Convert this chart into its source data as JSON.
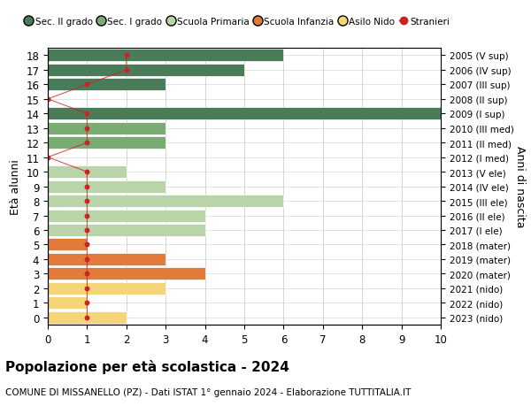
{
  "ages": [
    18,
    17,
    16,
    15,
    14,
    13,
    12,
    11,
    10,
    9,
    8,
    7,
    6,
    5,
    4,
    3,
    2,
    1,
    0
  ],
  "years": [
    "2005 (V sup)",
    "2006 (IV sup)",
    "2007 (III sup)",
    "2008 (II sup)",
    "2009 (I sup)",
    "2010 (III med)",
    "2011 (II med)",
    "2012 (I med)",
    "2013 (V ele)",
    "2014 (IV ele)",
    "2015 (III ele)",
    "2016 (II ele)",
    "2017 (I ele)",
    "2018 (mater)",
    "2019 (mater)",
    "2020 (mater)",
    "2021 (nido)",
    "2022 (nido)",
    "2023 (nido)"
  ],
  "bar_values": [
    6,
    5,
    3,
    0,
    10,
    3,
    3,
    0,
    2,
    3,
    6,
    4,
    4,
    1,
    3,
    4,
    3,
    1,
    2
  ],
  "bar_colors": [
    "#4a7c59",
    "#4a7c59",
    "#4a7c59",
    "#4a7c59",
    "#4a7c59",
    "#7aab72",
    "#7aab72",
    "#7aab72",
    "#b8d4a8",
    "#b8d4a8",
    "#b8d4a8",
    "#b8d4a8",
    "#b8d4a8",
    "#e07b39",
    "#e07b39",
    "#e07b39",
    "#f5d57a",
    "#f5d57a",
    "#f5d57a"
  ],
  "stranieri_values": [
    2,
    2,
    1,
    0,
    1,
    1,
    1,
    0,
    1,
    1,
    1,
    1,
    1,
    1,
    1,
    1,
    1,
    1,
    1
  ],
  "stranieri_ages": [
    18,
    17,
    16,
    15,
    14,
    13,
    12,
    11,
    10,
    9,
    8,
    7,
    6,
    5,
    4,
    3,
    2,
    1,
    0
  ],
  "xlim": [
    0,
    10
  ],
  "ylim": [
    -0.5,
    18.5
  ],
  "ylabel": "Età alunni",
  "ylabel_right": "Anni di nascita",
  "title": "Popolazione per età scolastica - 2024",
  "subtitle": "COMUNE DI MISSANELLO (PZ) - Dati ISTAT 1° gennaio 2024 - Elaborazione TUTTITALIA.IT",
  "legend_labels": [
    "Sec. II grado",
    "Sec. I grado",
    "Scuola Primaria",
    "Scuola Infanzia",
    "Asilo Nido",
    "Stranieri"
  ],
  "legend_colors": [
    "#4a7c59",
    "#7aab72",
    "#b8d4a8",
    "#e07b39",
    "#f5d57a",
    "#cc2222"
  ],
  "grid_color": "#cccccc",
  "bar_height": 0.85,
  "stranieri_color": "#cc2222",
  "background_color": "#ffffff",
  "tick_fontsize": 8.5,
  "label_fontsize": 9,
  "title_fontsize": 11,
  "subtitle_fontsize": 7.5
}
